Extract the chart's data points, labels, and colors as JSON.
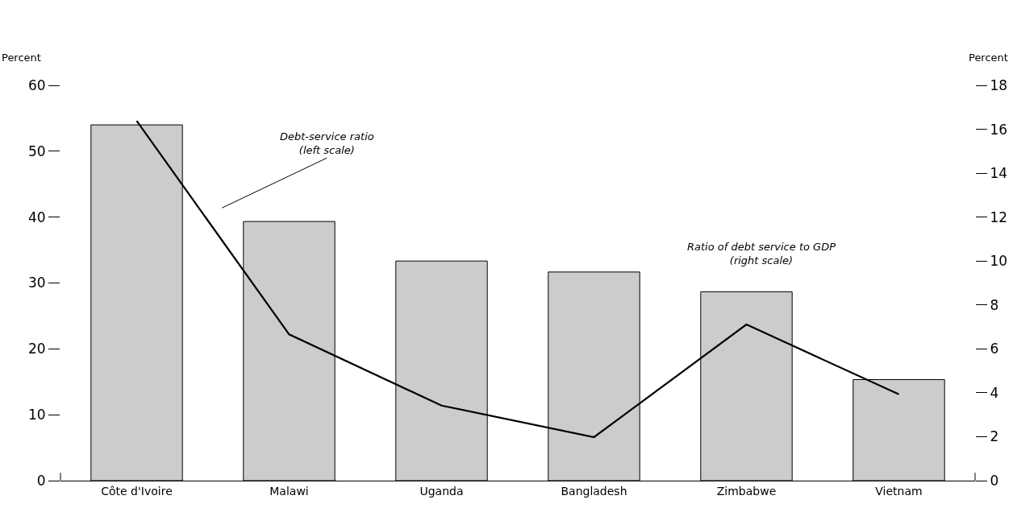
{
  "chart_data": {
    "type": "bar",
    "categories": [
      "Côte d'Ivoire",
      "Malawi",
      "Uganda",
      "Bangladesh",
      "Zimbabwe",
      "Vietnam"
    ],
    "ylabel": "Percent",
    "y2label": "Percent",
    "ylim": [
      0,
      60
    ],
    "yticks": [
      0,
      10,
      20,
      30,
      40,
      50,
      60
    ],
    "y2lim": [
      0,
      18
    ],
    "y2ticks": [
      0,
      2,
      4,
      6,
      8,
      10,
      12,
      14,
      16,
      18
    ],
    "series": [
      {
        "axis": "y2",
        "color": "#cccccc",
        "values": [
          16.2,
          11.8,
          10.0,
          9.5,
          8.6,
          4.6
        ]
      },
      {
        "type": "line",
        "axis": "y",
        "color": "#000000",
        "values": [
          54.6,
          22.2,
          11.4,
          6.6,
          23.7,
          13.1
        ]
      }
    ],
    "annotations": [
      "Debt-service ratio\n(left scale)",
      "Ratio of debt service to GDP\n(right scale)"
    ],
    "marker": "none",
    "line_style": "solid"
  }
}
